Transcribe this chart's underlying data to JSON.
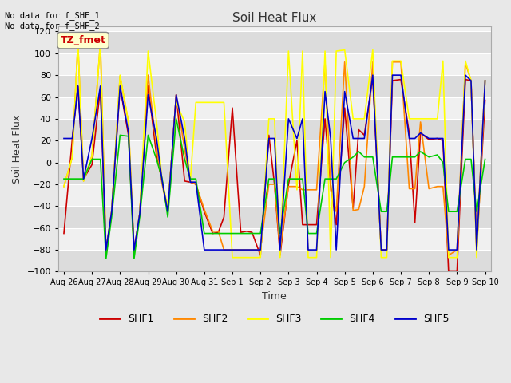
{
  "title": "Soil Heat Flux",
  "ylabel": "Soil Heat Flux",
  "xlabel": "Time",
  "annotation_top": "No data for f_SHF_1\nNo data for f_SHF_2",
  "legend_label": "TZ_fmet",
  "ylim": [
    -100,
    125
  ],
  "series_colors": {
    "SHF1": "#cc0000",
    "SHF2": "#ff8800",
    "SHF3": "#ffff00",
    "SHF4": "#00cc00",
    "SHF5": "#0000cc"
  },
  "xtick_labels": [
    "Aug 26",
    "Aug 27",
    "Aug 28",
    "Aug 29",
    "Aug 30",
    "Aug 31",
    "Sep 1",
    "Sep 2",
    "Sep 3",
    "Sep 4",
    "Sep 5",
    "Sep 6",
    "Sep 7",
    "Sep 8",
    "Sep 9",
    "Sep 10"
  ],
  "ytick_vals": [
    -100,
    -80,
    -60,
    -40,
    -20,
    0,
    20,
    40,
    60,
    80,
    100,
    120
  ],
  "bg_color": "#e8e8e8",
  "plot_bg_light": "#f0f0f0",
  "plot_bg_dark": "#dcdcdc",
  "grid_color": "#ffffff",
  "SHF1_x": [
    0,
    0.3,
    0.5,
    0.7,
    1.0,
    1.3,
    1.5,
    1.7,
    2.0,
    2.3,
    2.5,
    2.7,
    3.0,
    3.3,
    3.5,
    3.7,
    4.0,
    4.3,
    4.5,
    4.7,
    5.0,
    5.3,
    5.5,
    5.7,
    6.0,
    6.3,
    6.5,
    6.7,
    7.0,
    7.3,
    7.5,
    7.7,
    8.0,
    8.3,
    8.5,
    8.7,
    9.0,
    9.3,
    9.5,
    9.7,
    10.0,
    10.3,
    10.5,
    10.7,
    11.0,
    11.3,
    11.5,
    11.7,
    12.0,
    12.3,
    12.5,
    12.7,
    13.0,
    13.3,
    13.5,
    13.7,
    14.0,
    14.3,
    14.5,
    14.7,
    15.0
  ],
  "SHF1_y": [
    -65,
    22,
    70,
    -15,
    -2,
    68,
    -82,
    -45,
    69,
    25,
    -82,
    -47,
    70,
    6,
    -17,
    -45,
    62,
    -17,
    -18,
    -20,
    -45,
    -65,
    -64,
    -50,
    50,
    -64,
    -63,
    -64,
    -85,
    25,
    -20,
    -85,
    -20,
    20,
    -57,
    -57,
    -57,
    40,
    -20,
    -57,
    50,
    -42,
    30,
    25,
    78,
    -80,
    -80,
    75,
    76,
    27,
    -55,
    27,
    21,
    22,
    20,
    -100,
    -100,
    76,
    75,
    -80,
    57
  ],
  "SHF2_x": [
    0,
    0.3,
    0.5,
    0.7,
    1.0,
    1.3,
    1.5,
    1.7,
    2.0,
    2.3,
    2.5,
    2.7,
    3.0,
    3.3,
    3.5,
    3.7,
    4.0,
    4.3,
    4.5,
    4.7,
    5.0,
    5.3,
    5.5,
    5.7,
    6.0,
    6.3,
    6.5,
    6.7,
    7.0,
    7.3,
    7.5,
    7.7,
    8.0,
    8.3,
    8.5,
    8.7,
    9.0,
    9.3,
    9.5,
    9.7,
    10.0,
    10.3,
    10.5,
    10.7,
    11.0,
    11.3,
    11.5,
    11.7,
    12.0,
    12.3,
    12.5,
    12.7,
    13.0,
    13.3,
    13.5,
    13.7,
    14.0,
    14.3,
    14.5,
    14.7,
    15.0
  ],
  "SHF2_y": [
    -22,
    5,
    110,
    -17,
    6,
    110,
    -80,
    -45,
    79,
    37,
    -80,
    -47,
    80,
    13,
    -20,
    -45,
    62,
    12,
    -17,
    -20,
    -43,
    -63,
    -63,
    -80,
    -80,
    -80,
    -80,
    -80,
    -80,
    -20,
    -20,
    -80,
    -22,
    -22,
    -25,
    -25,
    -25,
    92,
    -25,
    -45,
    92,
    -44,
    -43,
    -22,
    92,
    -80,
    -80,
    92,
    92,
    -24,
    -24,
    37,
    -24,
    -22,
    -22,
    -85,
    -80,
    91,
    75,
    -75,
    75
  ],
  "SHF3_x": [
    0,
    0.3,
    0.5,
    0.7,
    1.0,
    1.3,
    1.5,
    1.7,
    2.0,
    2.3,
    2.5,
    2.7,
    3.0,
    3.3,
    3.5,
    3.7,
    4.0,
    4.3,
    4.5,
    4.7,
    5.0,
    5.3,
    5.5,
    5.7,
    6.0,
    6.3,
    6.5,
    6.7,
    7.0,
    7.3,
    7.5,
    7.7,
    8.0,
    8.3,
    8.5,
    8.7,
    9.0,
    9.3,
    9.5,
    9.7,
    10.0,
    10.3,
    10.5,
    10.7,
    11.0,
    11.3,
    11.5,
    11.7,
    12.0,
    12.3,
    12.5,
    12.7,
    13.0,
    13.3,
    13.5,
    13.7,
    14.0,
    14.3,
    14.5,
    14.7,
    15.0
  ],
  "SHF3_y": [
    -22,
    5,
    110,
    -17,
    6,
    110,
    -85,
    -45,
    80,
    37,
    -85,
    -47,
    102,
    37,
    -17,
    -40,
    55,
    37,
    -18,
    55,
    55,
    55,
    55,
    55,
    -87,
    -87,
    -87,
    -87,
    -87,
    40,
    40,
    -87,
    102,
    -25,
    102,
    -87,
    -87,
    102,
    -87,
    102,
    103,
    40,
    40,
    40,
    103,
    -87,
    -87,
    93,
    93,
    40,
    40,
    40,
    40,
    40,
    93,
    -87,
    -87,
    93,
    75,
    -87,
    75
  ],
  "SHF4_x": [
    0,
    0.3,
    0.5,
    0.7,
    1.0,
    1.3,
    1.5,
    1.7,
    2.0,
    2.3,
    2.5,
    2.7,
    3.0,
    3.3,
    3.5,
    3.7,
    4.0,
    4.3,
    4.5,
    4.7,
    5.0,
    5.3,
    5.5,
    5.7,
    6.0,
    6.3,
    6.5,
    6.7,
    7.0,
    7.3,
    7.5,
    7.7,
    8.0,
    8.3,
    8.5,
    8.7,
    9.0,
    9.3,
    9.5,
    9.7,
    10.0,
    10.3,
    10.5,
    10.7,
    11.0,
    11.3,
    11.5,
    11.7,
    12.0,
    12.3,
    12.5,
    12.7,
    13.0,
    13.3,
    13.5,
    13.7,
    14.0,
    14.3,
    14.5,
    14.7,
    15.0
  ],
  "SHF4_y": [
    -15,
    -15,
    -15,
    -15,
    3,
    3,
    -88,
    -50,
    25,
    24,
    -88,
    -50,
    25,
    3,
    -15,
    -50,
    40,
    3,
    -15,
    -15,
    -65,
    -65,
    -65,
    -65,
    -65,
    -65,
    -65,
    -65,
    -65,
    -15,
    -15,
    -65,
    -15,
    -15,
    -15,
    -65,
    -65,
    -15,
    -15,
    -15,
    0,
    5,
    10,
    5,
    5,
    -45,
    -45,
    5,
    5,
    5,
    5,
    10,
    5,
    7,
    0,
    -45,
    -45,
    3,
    3,
    -45,
    3
  ],
  "SHF5_x": [
    0,
    0.3,
    0.5,
    0.7,
    1.0,
    1.3,
    1.5,
    1.7,
    2.0,
    2.3,
    2.5,
    2.7,
    3.0,
    3.3,
    3.5,
    3.7,
    4.0,
    4.3,
    4.5,
    4.7,
    5.0,
    5.3,
    5.5,
    5.7,
    6.0,
    6.3,
    6.5,
    6.7,
    7.0,
    7.3,
    7.5,
    7.7,
    8.0,
    8.3,
    8.5,
    8.7,
    9.0,
    9.3,
    9.5,
    9.7,
    10.0,
    10.3,
    10.5,
    10.7,
    11.0,
    11.3,
    11.5,
    11.7,
    12.0,
    12.3,
    12.5,
    12.7,
    13.0,
    13.3,
    13.5,
    13.7,
    14.0,
    14.3,
    14.5,
    14.7,
    15.0
  ],
  "SHF5_y": [
    22,
    22,
    70,
    -15,
    22,
    70,
    -80,
    -45,
    70,
    28,
    -80,
    -47,
    62,
    22,
    -17,
    -45,
    62,
    22,
    -18,
    -18,
    -80,
    -80,
    -80,
    -80,
    -80,
    -80,
    -80,
    -80,
    -80,
    22,
    22,
    -80,
    40,
    22,
    40,
    -80,
    -80,
    65,
    22,
    -80,
    65,
    22,
    22,
    22,
    80,
    -80,
    -80,
    80,
    80,
    22,
    22,
    27,
    22,
    22,
    22,
    -80,
    -80,
    80,
    75,
    -80,
    75
  ]
}
